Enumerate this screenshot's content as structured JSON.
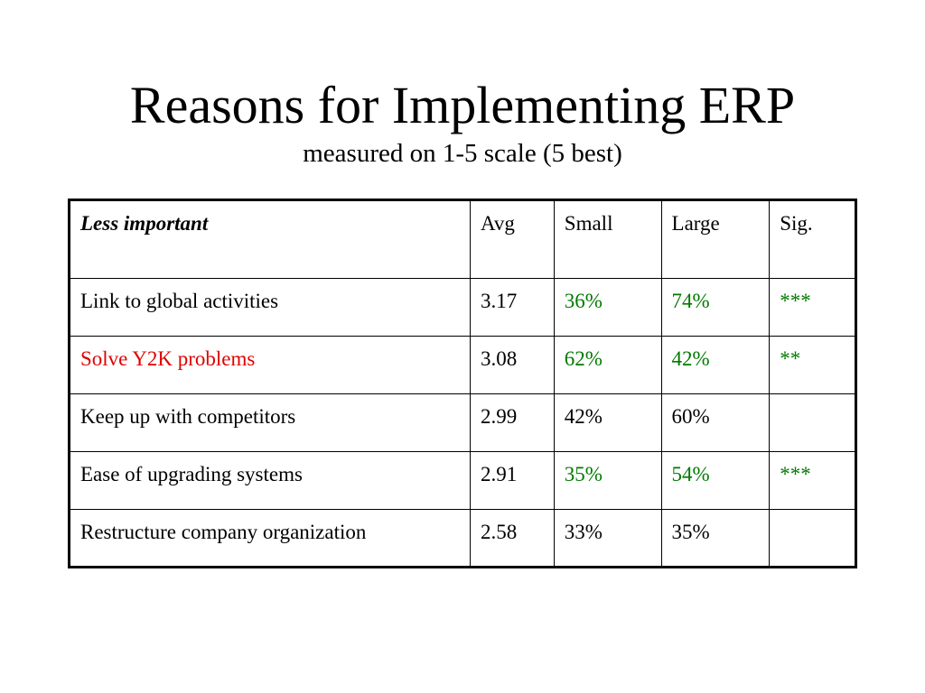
{
  "slide": {
    "title": "Reasons for Implementing ERP",
    "subtitle": "measured on 1-5 scale (5 best)"
  },
  "table": {
    "headers": [
      "Less important",
      "Avg",
      "Small",
      "Large",
      "Sig."
    ],
    "rows": [
      {
        "factor": "Link to global activities",
        "avg": "3.17",
        "small": "36%",
        "large": "74%",
        "sig": "***",
        "factor_color": "#000000",
        "value_color": "#007a00"
      },
      {
        "factor": "Solve Y2K problems",
        "avg": "3.08",
        "small": "62%",
        "large": "42%",
        "sig": "**",
        "factor_color": "#e00000",
        "value_color": "#007a00"
      },
      {
        "factor": "Keep up with competitors",
        "avg": "2.99",
        "small": "42%",
        "large": "60%",
        "sig": "",
        "factor_color": "#000000",
        "value_color": "#000000"
      },
      {
        "factor": "Ease of upgrading systems",
        "avg": "2.91",
        "small": "35%",
        "large": "54%",
        "sig": "***",
        "factor_color": "#000000",
        "value_color": "#007a00"
      },
      {
        "factor": "Restructure company organization",
        "avg": "2.58",
        "small": "33%",
        "large": "35%",
        "sig": "",
        "factor_color": "#000000",
        "value_color": "#000000"
      }
    ]
  }
}
